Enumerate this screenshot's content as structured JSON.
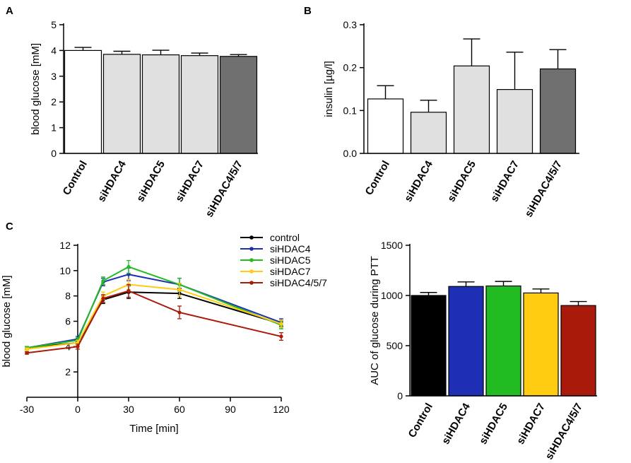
{
  "panel_labels": {
    "a": "A",
    "b": "B",
    "c": "C"
  },
  "chart_data": [
    {
      "id": "A",
      "type": "bar",
      "title": "",
      "xlabel": "",
      "ylabel": "blood glucose [mM]",
      "ylim": [
        0,
        5
      ],
      "yticks": [
        "0",
        "1",
        "2",
        "3",
        "4",
        "5"
      ],
      "categories": [
        "Control",
        "siHDAC4",
        "siHDAC5",
        "siHDAC7",
        "siHDAC4/5/7"
      ],
      "values": [
        4.0,
        3.85,
        3.83,
        3.8,
        3.77
      ],
      "errors": [
        0.12,
        0.12,
        0.18,
        0.1,
        0.07
      ],
      "colors": [
        "#ffffff",
        "#e0e0e0",
        "#e0e0e0",
        "#e0e0e0",
        "#707070"
      ]
    },
    {
      "id": "B",
      "type": "bar",
      "title": "",
      "xlabel": "",
      "ylabel": "insulin [µg/l]",
      "ylim": [
        0,
        0.3
      ],
      "yticks": [
        "0.0",
        "0.1",
        "0.2",
        "0.3"
      ],
      "categories": [
        "Control",
        "siHDAC4",
        "siHDAC5",
        "siHDAC7",
        "siHDAC4/5/7"
      ],
      "values": [
        0.127,
        0.096,
        0.204,
        0.149,
        0.197
      ],
      "errors": [
        0.031,
        0.028,
        0.063,
        0.087,
        0.045
      ],
      "colors": [
        "#ffffff",
        "#e0e0e0",
        "#e0e0e0",
        "#e0e0e0",
        "#707070"
      ]
    },
    {
      "id": "C-left",
      "type": "line",
      "title": "",
      "xlabel": "Time [min]",
      "ylabel": "blood glucose [mM]",
      "xlim": [
        -30,
        120
      ],
      "ylim": [
        0,
        12
      ],
      "xticks": [
        "-30",
        "0",
        "30",
        "60",
        "90",
        "120"
      ],
      "yticks": [
        "2",
        "4",
        "6",
        "8",
        "10",
        "12"
      ],
      "x": [
        -30,
        0,
        15,
        30,
        60,
        120
      ],
      "series": [
        {
          "name": "control",
          "color": "#000000",
          "values": [
            3.9,
            4.3,
            7.7,
            8.3,
            8.2,
            5.8
          ],
          "errors": [
            0.1,
            0.2,
            0.3,
            0.5,
            0.4,
            0.3
          ]
        },
        {
          "name": "siHDAC4",
          "color": "#1f2fb5",
          "values": [
            3.9,
            4.6,
            9.1,
            9.7,
            8.9,
            5.9
          ],
          "errors": [
            0.1,
            0.2,
            0.3,
            0.5,
            0.5,
            0.3
          ]
        },
        {
          "name": "siHDAC5",
          "color": "#22bb22",
          "values": [
            3.9,
            4.5,
            9.2,
            10.3,
            8.9,
            5.7
          ],
          "errors": [
            0.1,
            0.2,
            0.3,
            0.5,
            0.5,
            0.3
          ]
        },
        {
          "name": "siHDAC7",
          "color": "#ffcc11",
          "values": [
            3.8,
            4.3,
            8.0,
            8.9,
            8.5,
            5.8
          ],
          "errors": [
            0.1,
            0.2,
            0.3,
            0.4,
            0.5,
            0.3
          ]
        },
        {
          "name": "siHDAC4/5/7",
          "color": "#aa1a0a",
          "values": [
            3.5,
            4.0,
            7.8,
            8.4,
            6.7,
            4.8
          ],
          "errors": [
            0.1,
            0.2,
            0.3,
            0.5,
            0.5,
            0.3
          ]
        }
      ],
      "legend": "top-right"
    },
    {
      "id": "C-right",
      "type": "bar",
      "title": "",
      "xlabel": "",
      "ylabel": "AUC of glucose during PTT",
      "ylim": [
        0,
        1500
      ],
      "yticks": [
        "0",
        "500",
        "1000",
        "1500"
      ],
      "categories": [
        "Control",
        "siHDAC4",
        "siHDAC5",
        "siHDAC7",
        "siHDAC4/5/7"
      ],
      "values": [
        1000,
        1090,
        1095,
        1025,
        900
      ],
      "errors": [
        30,
        45,
        45,
        40,
        40
      ],
      "colors": [
        "#000000",
        "#1f2fb5",
        "#22bb22",
        "#ffcc11",
        "#aa1a0a"
      ]
    }
  ]
}
